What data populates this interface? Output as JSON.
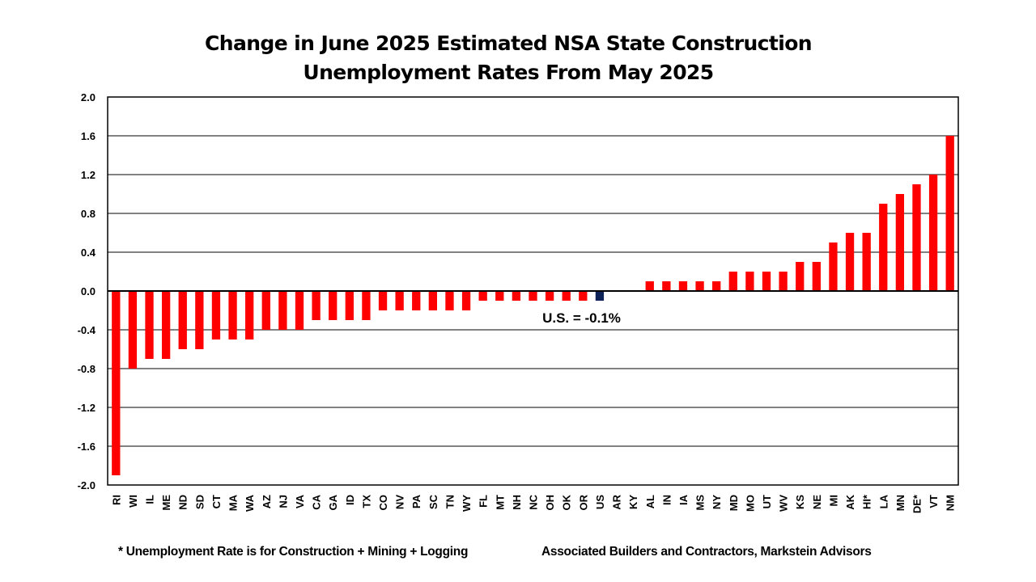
{
  "chart_data": {
    "type": "bar",
    "title_lines": [
      "Change in June 2025 Estimated NSA State Construction",
      "Unemployment Rates From May 2025"
    ],
    "xlabel": "",
    "ylabel": "",
    "ylim": [
      -2.0,
      2.0
    ],
    "yticks": [
      "2.0",
      "1.6",
      "1.2",
      "0.8",
      "0.4",
      "0.0",
      "-0.4",
      "-0.8",
      "-1.2",
      "-1.6",
      "-2.0"
    ],
    "ytick_values": [
      2.0,
      1.6,
      1.2,
      0.8,
      0.4,
      0.0,
      -0.4,
      -0.8,
      -1.2,
      -1.6,
      -2.0
    ],
    "grid": true,
    "categories": [
      "RI",
      "WI",
      "IL",
      "ME",
      "ND",
      "SD",
      "CT",
      "MA",
      "WA",
      "AZ",
      "NJ",
      "VA",
      "CA",
      "GA",
      "ID",
      "TX",
      "CO",
      "NV",
      "PA",
      "SC",
      "TN",
      "WY",
      "FL",
      "MT",
      "NH",
      "NC",
      "OH",
      "OK",
      "OR",
      "US",
      "AR",
      "KY",
      "AL",
      "IN",
      "IA",
      "MS",
      "NY",
      "MD",
      "MO",
      "UT",
      "WV",
      "KS",
      "NE",
      "MI",
      "AK",
      "HI*",
      "LA",
      "MN",
      "DE*",
      "VT",
      "NM"
    ],
    "values": [
      -1.9,
      -0.8,
      -0.7,
      -0.7,
      -0.6,
      -0.6,
      -0.5,
      -0.5,
      -0.5,
      -0.4,
      -0.4,
      -0.4,
      -0.3,
      -0.3,
      -0.3,
      -0.3,
      -0.2,
      -0.2,
      -0.2,
      -0.2,
      -0.2,
      -0.2,
      -0.1,
      -0.1,
      -0.1,
      -0.1,
      -0.1,
      -0.1,
      -0.1,
      -0.1,
      0.0,
      0.0,
      0.1,
      0.1,
      0.1,
      0.1,
      0.1,
      0.2,
      0.2,
      0.2,
      0.2,
      0.3,
      0.3,
      0.5,
      0.6,
      0.6,
      0.9,
      1.0,
      1.1,
      1.2,
      1.6
    ],
    "bar_color": "#ff0000",
    "highlight_category": "US",
    "highlight_color": "#0d2257",
    "annotation": "U.S. = -0.1%"
  },
  "footnotes": {
    "left": "* Unemployment Rate is for Construction + Mining + Logging",
    "right": "Associated Builders and Contractors, Markstein Advisors"
  }
}
